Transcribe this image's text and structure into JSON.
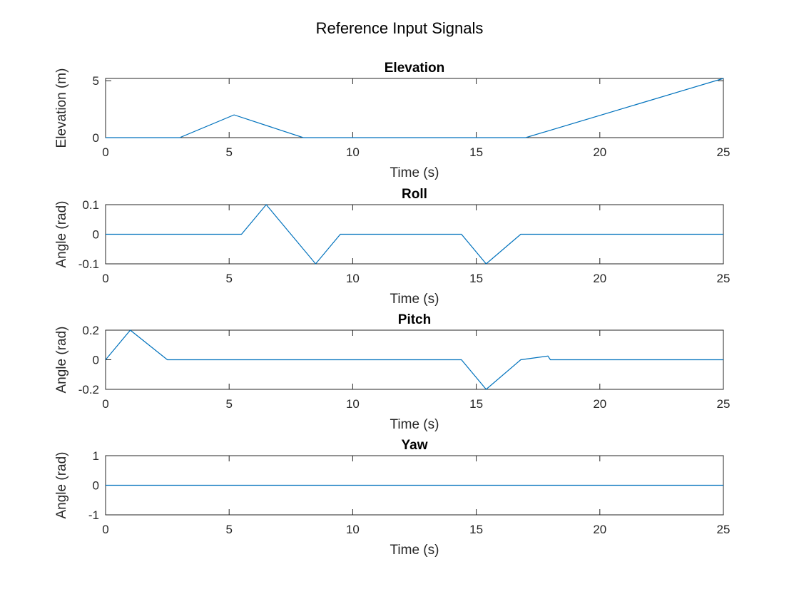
{
  "figure_title": "Reference Input Signals",
  "chart_data": [
    {
      "type": "line",
      "title": "Elevation",
      "xlabel": "Time (s)",
      "ylabel": "Elevation (m)",
      "xlim": [
        0,
        25
      ],
      "ylim": [
        0,
        5.2
      ],
      "xticks": [
        0,
        5,
        10,
        15,
        20,
        25
      ],
      "yticks": [
        0,
        5
      ],
      "grid": false,
      "line_color": "#0072BD",
      "series": [
        {
          "x": [
            0,
            3,
            5.2,
            8,
            17,
            25
          ],
          "y": [
            0,
            0,
            2,
            0,
            0,
            5.2
          ]
        }
      ]
    },
    {
      "type": "line",
      "title": "Roll",
      "xlabel": "Time (s)",
      "ylabel": "Angle (rad)",
      "xlim": [
        0,
        25
      ],
      "ylim": [
        -0.1,
        0.1
      ],
      "xticks": [
        0,
        5,
        10,
        15,
        20,
        25
      ],
      "yticks": [
        -0.1,
        0,
        0.1
      ],
      "grid": false,
      "line_color": "#0072BD",
      "series": [
        {
          "x": [
            0,
            5.5,
            6.5,
            8.5,
            9.5,
            14.4,
            15.4,
            16.8,
            25
          ],
          "y": [
            0,
            0,
            0.1,
            -0.1,
            0,
            0,
            -0.1,
            0,
            0
          ]
        }
      ]
    },
    {
      "type": "line",
      "title": "Pitch",
      "xlabel": "Time (s)",
      "ylabel": "Angle (rad)",
      "xlim": [
        0,
        25
      ],
      "ylim": [
        -0.2,
        0.2
      ],
      "xticks": [
        0,
        5,
        10,
        15,
        20,
        25
      ],
      "yticks": [
        -0.2,
        0,
        0.2
      ],
      "grid": false,
      "line_color": "#0072BD",
      "series": [
        {
          "x": [
            0,
            1,
            2.5,
            14.4,
            15.4,
            16.8,
            17.9,
            18,
            25
          ],
          "y": [
            0,
            0.2,
            0,
            0,
            -0.2,
            0,
            0.025,
            0,
            0
          ]
        }
      ]
    },
    {
      "type": "line",
      "title": "Yaw",
      "xlabel": "Time (s)",
      "ylabel": "Angle (rad)",
      "xlim": [
        0,
        25
      ],
      "ylim": [
        -1,
        1
      ],
      "xticks": [
        0,
        5,
        10,
        15,
        20,
        25
      ],
      "yticks": [
        -1,
        0,
        1
      ],
      "grid": false,
      "line_color": "#0072BD",
      "series": [
        {
          "x": [
            0,
            25
          ],
          "y": [
            0,
            0
          ]
        }
      ]
    }
  ]
}
